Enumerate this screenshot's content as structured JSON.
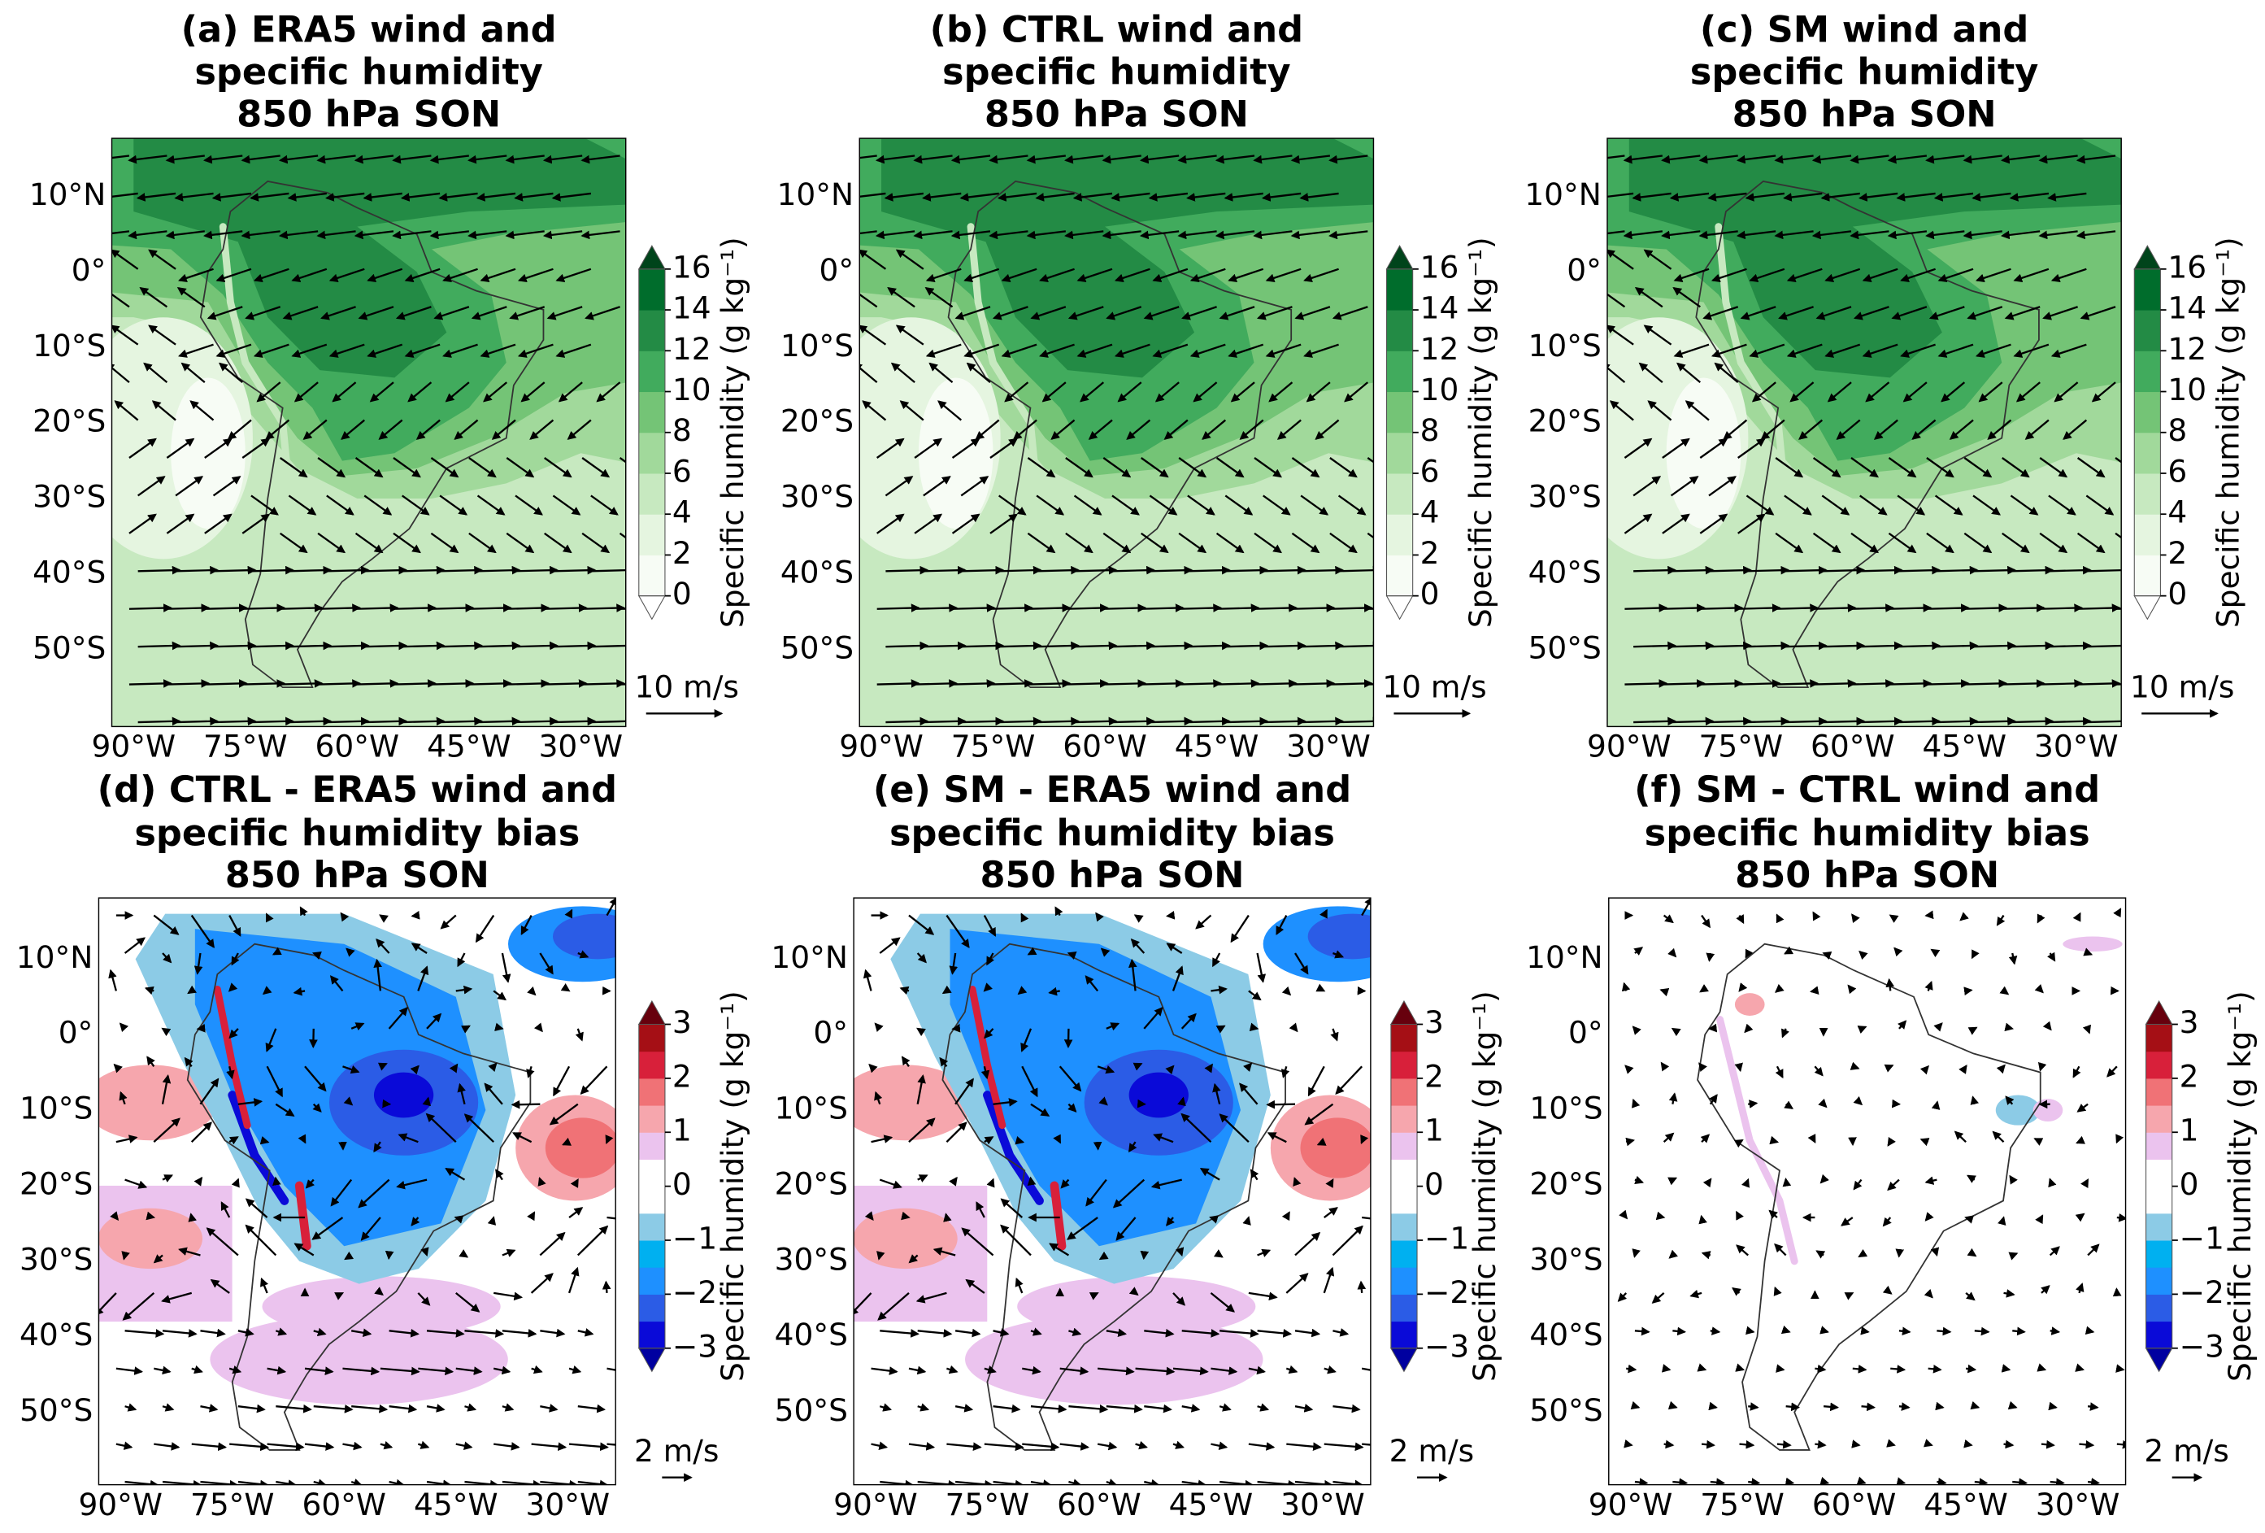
{
  "panels": [
    {
      "title": [
        "(a) ERA5 wind and",
        "specific humidity",
        "850 hPa SON"
      ],
      "lat_labels": [
        "10°N",
        "0°",
        "10°S",
        "20°S",
        "30°S",
        "40°S",
        "50°S"
      ],
      "lon_labels": [
        "90°W",
        "75°W",
        "60°W",
        "45°W",
        "30°W"
      ],
      "quiver_key": "10 m/s",
      "colorbar": {
        "label": "Specific humidity (g kg⁻¹)",
        "ticks": [
          0,
          2,
          4,
          6,
          8,
          10,
          12,
          14,
          16
        ],
        "colors": [
          "#f7fcf5",
          "#e5f5e0",
          "#c7e9c0",
          "#a1d99b",
          "#74c476",
          "#41ab5d",
          "#238b45",
          "#006d2c"
        ],
        "extend_colors": [
          "#ffffff",
          "#00441b"
        ]
      }
    },
    {
      "title": [
        "(b) CTRL wind and",
        "specific humidity",
        "850 hPa SON"
      ],
      "lat_labels": [
        "10°N",
        "0°",
        "10°S",
        "20°S",
        "30°S",
        "40°S",
        "50°S"
      ],
      "lon_labels": [
        "90°W",
        "75°W",
        "60°W",
        "45°W",
        "30°W"
      ],
      "quiver_key": "10 m/s",
      "colorbar": {
        "label": "Specific humidity (g kg⁻¹)",
        "ticks": [
          0,
          2,
          4,
          6,
          8,
          10,
          12,
          14,
          16
        ],
        "colors": [
          "#f7fcf5",
          "#e5f5e0",
          "#c7e9c0",
          "#a1d99b",
          "#74c476",
          "#41ab5d",
          "#238b45",
          "#006d2c"
        ],
        "extend_colors": [
          "#ffffff",
          "#00441b"
        ]
      }
    },
    {
      "title": [
        "(c) SM wind and",
        "specific humidity",
        "850 hPa SON"
      ],
      "lat_labels": [
        "10°N",
        "0°",
        "10°S",
        "20°S",
        "30°S",
        "40°S",
        "50°S"
      ],
      "lon_labels": [
        "90°W",
        "75°W",
        "60°W",
        "45°W",
        "30°W"
      ],
      "quiver_key": "10 m/s",
      "colorbar": {
        "label": "Specific humidity (g kg⁻¹)",
        "ticks": [
          0,
          2,
          4,
          6,
          8,
          10,
          12,
          14,
          16
        ],
        "colors": [
          "#f7fcf5",
          "#e5f5e0",
          "#c7e9c0",
          "#a1d99b",
          "#74c476",
          "#41ab5d",
          "#238b45",
          "#006d2c"
        ],
        "extend_colors": [
          "#ffffff",
          "#00441b"
        ]
      }
    },
    {
      "title": [
        "(d) CTRL - ERA5 wind and",
        "specific humidity bias",
        "850 hPa SON"
      ],
      "lat_labels": [
        "10°N",
        "0°",
        "10°S",
        "20°S",
        "30°S",
        "40°S",
        "50°S"
      ],
      "lon_labels": [
        "90°W",
        "75°W",
        "60°W",
        "45°W",
        "30°W"
      ],
      "quiver_key": "2 m/s",
      "colorbar": {
        "label": "Specific humidity (g kg⁻¹)",
        "ticks": [
          {
            "value": -3,
            "label": "−3"
          },
          {
            "value": -2,
            "label": "−2"
          },
          {
            "value": -1,
            "label": "−1"
          },
          0,
          1,
          2,
          3
        ],
        "colors": [
          "#0a0ad8",
          "#2b5ce6",
          "#1e90ff",
          "#00b0f0",
          "#8ccbe6",
          "#ffffff",
          "#ffffff",
          "#ebc3ee",
          "#f6a6ad",
          "#f07276",
          "#d8203a",
          "#a50f15"
        ],
        "extend_colors": [
          "#0000a0",
          "#67000d"
        ]
      }
    },
    {
      "title": [
        "(e) SM - ERA5 wind and",
        "specific humidity bias",
        "850 hPa SON"
      ],
      "lat_labels": [
        "10°N",
        "0°",
        "10°S",
        "20°S",
        "30°S",
        "40°S",
        "50°S"
      ],
      "lon_labels": [
        "90°W",
        "75°W",
        "60°W",
        "45°W",
        "30°W"
      ],
      "quiver_key": "2 m/s",
      "colorbar": {
        "label": "Specific humidity (g kg⁻¹)",
        "ticks": [
          {
            "value": -3,
            "label": "−3"
          },
          {
            "value": -2,
            "label": "−2"
          },
          {
            "value": -1,
            "label": "−1"
          },
          0,
          1,
          2,
          3
        ],
        "colors": [
          "#0a0ad8",
          "#2b5ce6",
          "#1e90ff",
          "#00b0f0",
          "#8ccbe6",
          "#ffffff",
          "#ffffff",
          "#ebc3ee",
          "#f6a6ad",
          "#f07276",
          "#d8203a",
          "#a50f15"
        ],
        "extend_colors": [
          "#0000a0",
          "#67000d"
        ]
      }
    },
    {
      "title": [
        "(f) SM - CTRL wind and",
        "specific humidity bias",
        "850 hPa SON"
      ],
      "lat_labels": [
        "10°N",
        "0°",
        "10°S",
        "20°S",
        "30°S",
        "40°S",
        "50°S"
      ],
      "lon_labels": [
        "90°W",
        "75°W",
        "60°W",
        "45°W",
        "30°W"
      ],
      "quiver_key": "2 m/s",
      "colorbar": {
        "label": "Specific humidity (g kg⁻¹)",
        "ticks": [
          {
            "value": -3,
            "label": "−3"
          },
          {
            "value": -2,
            "label": "−2"
          },
          {
            "value": -1,
            "label": "−1"
          },
          0,
          1,
          2,
          3
        ],
        "colors": [
          "#0a0ad8",
          "#2b5ce6",
          "#1e90ff",
          "#00b0f0",
          "#8ccbe6",
          "#ffffff",
          "#ffffff",
          "#ebc3ee",
          "#f6a6ad",
          "#f07276",
          "#d8203a",
          "#a50f15"
        ],
        "extend_colors": [
          "#0000a0",
          "#67000d"
        ]
      }
    }
  ]
}
